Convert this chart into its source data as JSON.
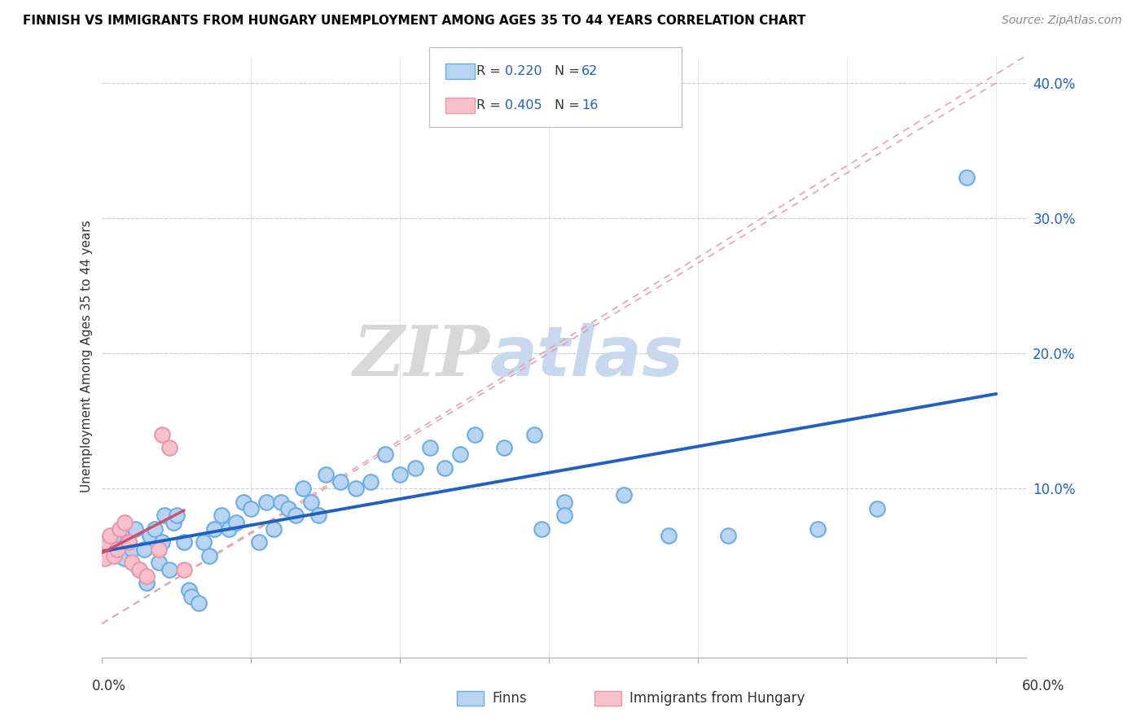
{
  "title": "FINNISH VS IMMIGRANTS FROM HUNGARY UNEMPLOYMENT AMONG AGES 35 TO 44 YEARS CORRELATION CHART",
  "source": "Source: ZipAtlas.com",
  "ylabel": "Unemployment Among Ages 35 to 44 years",
  "xrange": [
    0.0,
    0.62
  ],
  "yrange": [
    -0.025,
    0.42
  ],
  "r_finn": "0.220",
  "n_finn": "62",
  "r_imm": "0.405",
  "n_imm": "16",
  "finn_color": "#b8d4f0",
  "finn_edge_color": "#6aaee8",
  "finn_line_color": "#2060c0",
  "imm_color": "#f8c0cc",
  "imm_edge_color": "#e898a8",
  "imm_line_color": "#d05070",
  "diag_color": "#e8a0b0",
  "watermark_zip": "ZIP",
  "watermark_atlas": "atlas",
  "legend_finn": "Finns",
  "legend_imm": "Immigrants from Hungary",
  "finns_x": [
    0.001,
    0.005,
    0.008,
    0.012,
    0.015,
    0.018,
    0.02,
    0.022,
    0.025,
    0.028,
    0.03,
    0.032,
    0.035,
    0.038,
    0.04,
    0.042,
    0.045,
    0.048,
    0.05,
    0.055,
    0.058,
    0.06,
    0.065,
    0.068,
    0.072,
    0.075,
    0.08,
    0.085,
    0.09,
    0.095,
    0.1,
    0.105,
    0.11,
    0.115,
    0.12,
    0.125,
    0.13,
    0.135,
    0.14,
    0.145,
    0.15,
    0.16,
    0.17,
    0.18,
    0.19,
    0.2,
    0.21,
    0.22,
    0.23,
    0.24,
    0.25,
    0.27,
    0.29,
    0.31,
    0.295,
    0.31,
    0.35,
    0.38,
    0.42,
    0.48,
    0.52,
    0.58
  ],
  "finns_y": [
    0.055,
    0.058,
    0.065,
    0.05,
    0.048,
    0.06,
    0.055,
    0.07,
    0.04,
    0.055,
    0.03,
    0.065,
    0.07,
    0.045,
    0.06,
    0.08,
    0.04,
    0.075,
    0.08,
    0.06,
    0.025,
    0.02,
    0.015,
    0.06,
    0.05,
    0.07,
    0.08,
    0.07,
    0.075,
    0.09,
    0.085,
    0.06,
    0.09,
    0.07,
    0.09,
    0.085,
    0.08,
    0.1,
    0.09,
    0.08,
    0.11,
    0.105,
    0.1,
    0.105,
    0.125,
    0.11,
    0.115,
    0.13,
    0.115,
    0.125,
    0.14,
    0.13,
    0.14,
    0.09,
    0.07,
    0.08,
    0.095,
    0.065,
    0.065,
    0.07,
    0.085,
    0.33
  ],
  "imm_x": [
    0.0,
    0.002,
    0.003,
    0.005,
    0.008,
    0.01,
    0.012,
    0.015,
    0.018,
    0.02,
    0.025,
    0.03,
    0.038,
    0.04,
    0.045,
    0.055
  ],
  "imm_y": [
    0.055,
    0.048,
    0.06,
    0.065,
    0.05,
    0.055,
    0.07,
    0.075,
    0.06,
    0.045,
    0.04,
    0.035,
    0.055,
    0.14,
    0.13,
    0.04
  ]
}
